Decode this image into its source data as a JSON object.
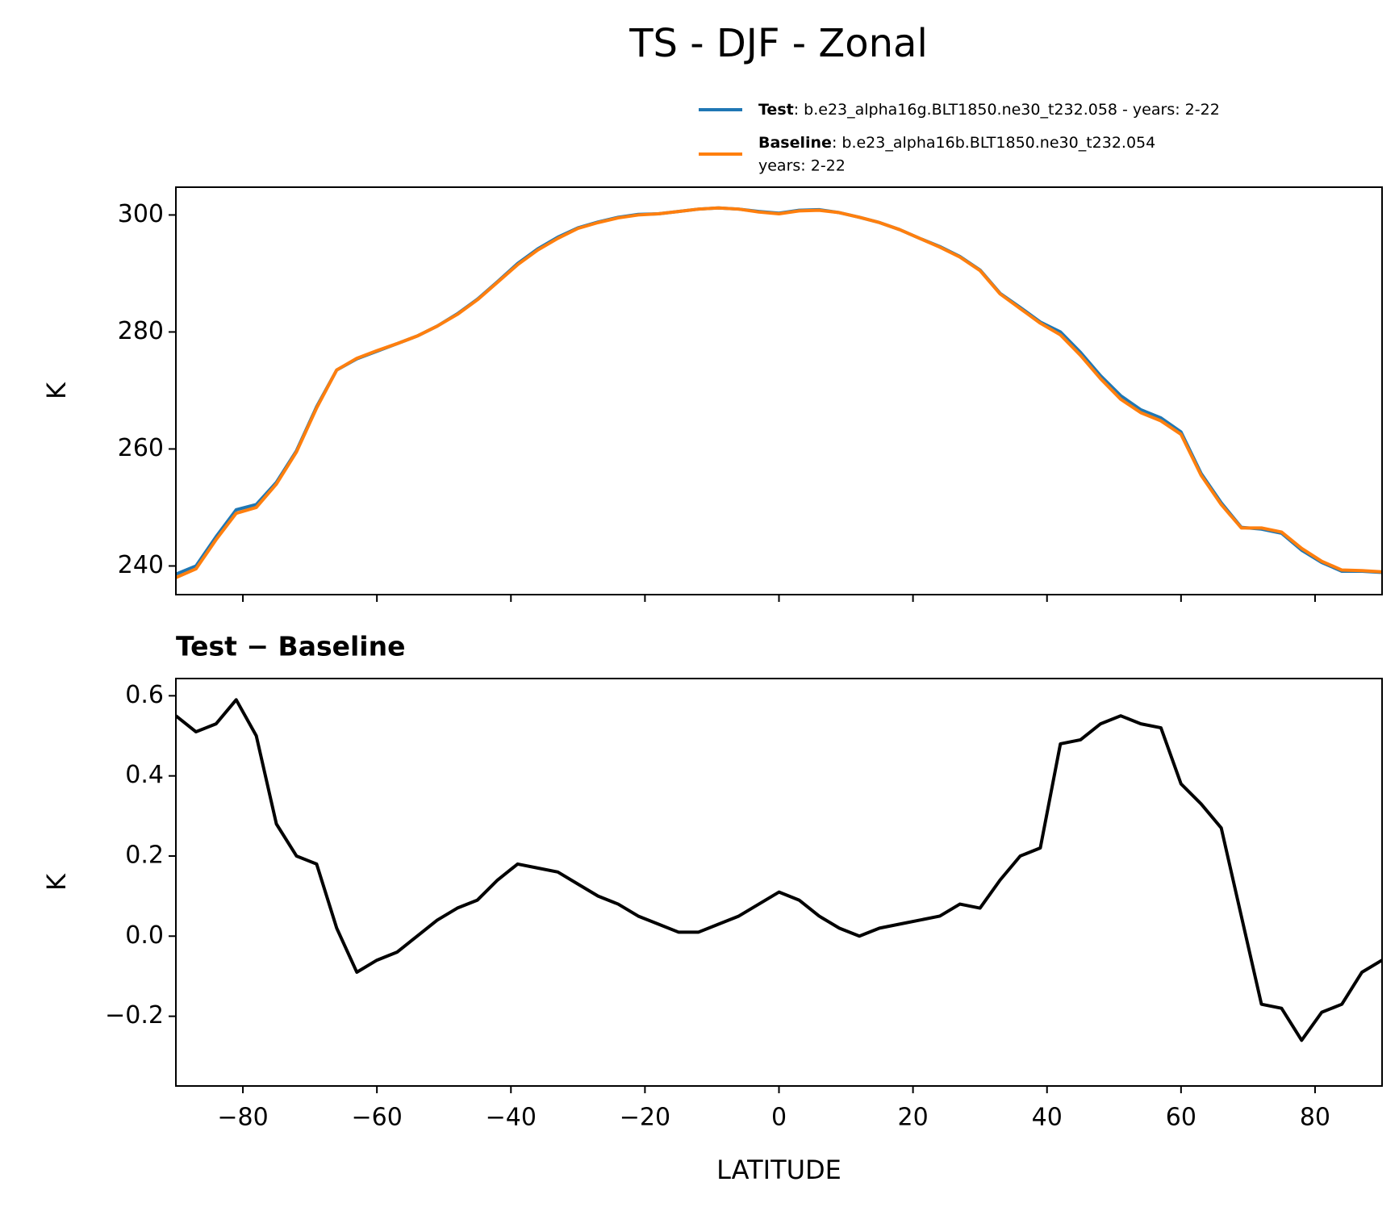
{
  "title": "TS - DJF - Zonal",
  "chart_data": [
    {
      "type": "line",
      "ylabel": "K",
      "xlim": [
        -90,
        90
      ],
      "ylim": [
        235.1,
        304.75
      ],
      "yticks": [
        240,
        260,
        280,
        300
      ],
      "x": [
        -90,
        -87,
        -84,
        -81,
        -78,
        -75,
        -72,
        -69,
        -66,
        -63,
        -60,
        -57,
        -54,
        -51,
        -48,
        -45,
        -42,
        -39,
        -36,
        -33,
        -30,
        -27,
        -24,
        -21,
        -18,
        -15,
        -12,
        -9,
        -6,
        -3,
        0,
        3,
        6,
        9,
        12,
        15,
        18,
        21,
        24,
        27,
        30,
        33,
        36,
        39,
        42,
        45,
        48,
        51,
        54,
        57,
        60,
        63,
        66,
        69,
        72,
        75,
        78,
        81,
        84,
        87,
        90
      ],
      "series": [
        {
          "name": "Test",
          "description": [
            ": b.e23_alpha16g.BLT1850.ne30_t232.058 - years: 2-22"
          ],
          "color": "#1f77b4",
          "values": [
            238.6,
            240.0,
            245.0,
            249.6,
            250.5,
            254.3,
            259.7,
            267.2,
            273.5,
            275.4,
            276.7,
            278.0,
            279.3,
            281.0,
            283.1,
            285.6,
            288.6,
            291.7,
            294.2,
            296.2,
            297.8,
            298.8,
            299.6,
            300.1,
            300.2,
            300.6,
            301.0,
            301.2,
            301.0,
            300.6,
            300.3,
            300.8,
            300.9,
            300.4,
            299.6,
            298.7,
            297.5,
            296.0,
            294.6,
            292.9,
            290.6,
            286.6,
            284.2,
            281.7,
            280.0,
            276.5,
            272.5,
            269.1,
            266.7,
            265.3,
            262.9,
            255.8,
            250.8,
            246.6,
            246.3,
            245.6,
            242.7,
            240.6,
            239.1,
            239.1,
            238.9
          ]
        },
        {
          "name": "Baseline",
          "description": [
            ": b.e23_alpha16b.BLT1850.ne30_t232.054",
            "years: 2-22"
          ],
          "color": "#ff7f0e",
          "values": [
            238.0,
            239.5,
            244.5,
            249.0,
            250.0,
            254.0,
            259.5,
            267.0,
            273.5,
            275.5,
            276.8,
            278.0,
            279.3,
            281.0,
            283.0,
            285.5,
            288.5,
            291.5,
            294.0,
            296.0,
            297.7,
            298.7,
            299.5,
            300.0,
            300.2,
            300.6,
            301.0,
            301.2,
            301.0,
            300.5,
            300.2,
            300.7,
            300.8,
            300.4,
            299.6,
            298.7,
            297.5,
            296.0,
            294.5,
            292.8,
            290.5,
            286.5,
            284.0,
            281.5,
            279.5,
            276.0,
            272.0,
            268.5,
            266.2,
            264.8,
            262.5,
            255.5,
            250.5,
            246.5,
            246.5,
            245.8,
            243.0,
            240.8,
            239.3,
            239.2,
            239.0
          ]
        }
      ]
    },
    {
      "type": "line",
      "title": "Test − Baseline",
      "ylabel": "K",
      "xlabel": "LATITUDE",
      "xlim": [
        -90,
        90
      ],
      "ylim": [
        -0.374,
        0.643
      ],
      "xticks": [
        {
          "value": -80,
          "label": "−80"
        },
        {
          "value": -60,
          "label": "−60"
        },
        {
          "value": -40,
          "label": "−40"
        },
        {
          "value": -20,
          "label": "−20"
        },
        0,
        20,
        40,
        60,
        80
      ],
      "yticks": [
        {
          "value": -0.2,
          "label": "−0.2"
        },
        {
          "value": 0,
          "label": "0.0"
        },
        0.2,
        0.4,
        0.6
      ],
      "x": [
        -90,
        -87,
        -84,
        -81,
        -78,
        -75,
        -72,
        -69,
        -66,
        -63,
        -60,
        -57,
        -54,
        -51,
        -48,
        -45,
        -42,
        -39,
        -36,
        -33,
        -30,
        -27,
        -24,
        -21,
        -18,
        -15,
        -12,
        -9,
        -6,
        -3,
        0,
        3,
        6,
        9,
        12,
        15,
        18,
        21,
        24,
        27,
        30,
        33,
        36,
        39,
        42,
        45,
        48,
        51,
        54,
        57,
        60,
        63,
        66,
        69,
        72,
        75,
        78,
        81,
        84,
        87,
        90
      ],
      "series": [
        {
          "color": "#000000",
          "values": [
            0.55,
            0.51,
            0.53,
            0.59,
            0.5,
            0.28,
            0.2,
            0.18,
            0.02,
            -0.09,
            -0.06,
            -0.04,
            0.0,
            0.04,
            0.07,
            0.09,
            0.14,
            0.18,
            0.17,
            0.16,
            0.13,
            0.1,
            0.08,
            0.05,
            0.03,
            0.01,
            0.01,
            0.03,
            0.05,
            0.08,
            0.11,
            0.09,
            0.05,
            0.02,
            0.0,
            0.02,
            0.03,
            0.04,
            0.05,
            0.08,
            0.07,
            0.14,
            0.2,
            0.22,
            0.48,
            0.49,
            0.53,
            0.55,
            0.53,
            0.52,
            0.38,
            0.33,
            0.27,
            0.05,
            -0.17,
            -0.18,
            -0.26,
            -0.19,
            -0.17,
            -0.09,
            -0.06
          ]
        }
      ]
    }
  ]
}
